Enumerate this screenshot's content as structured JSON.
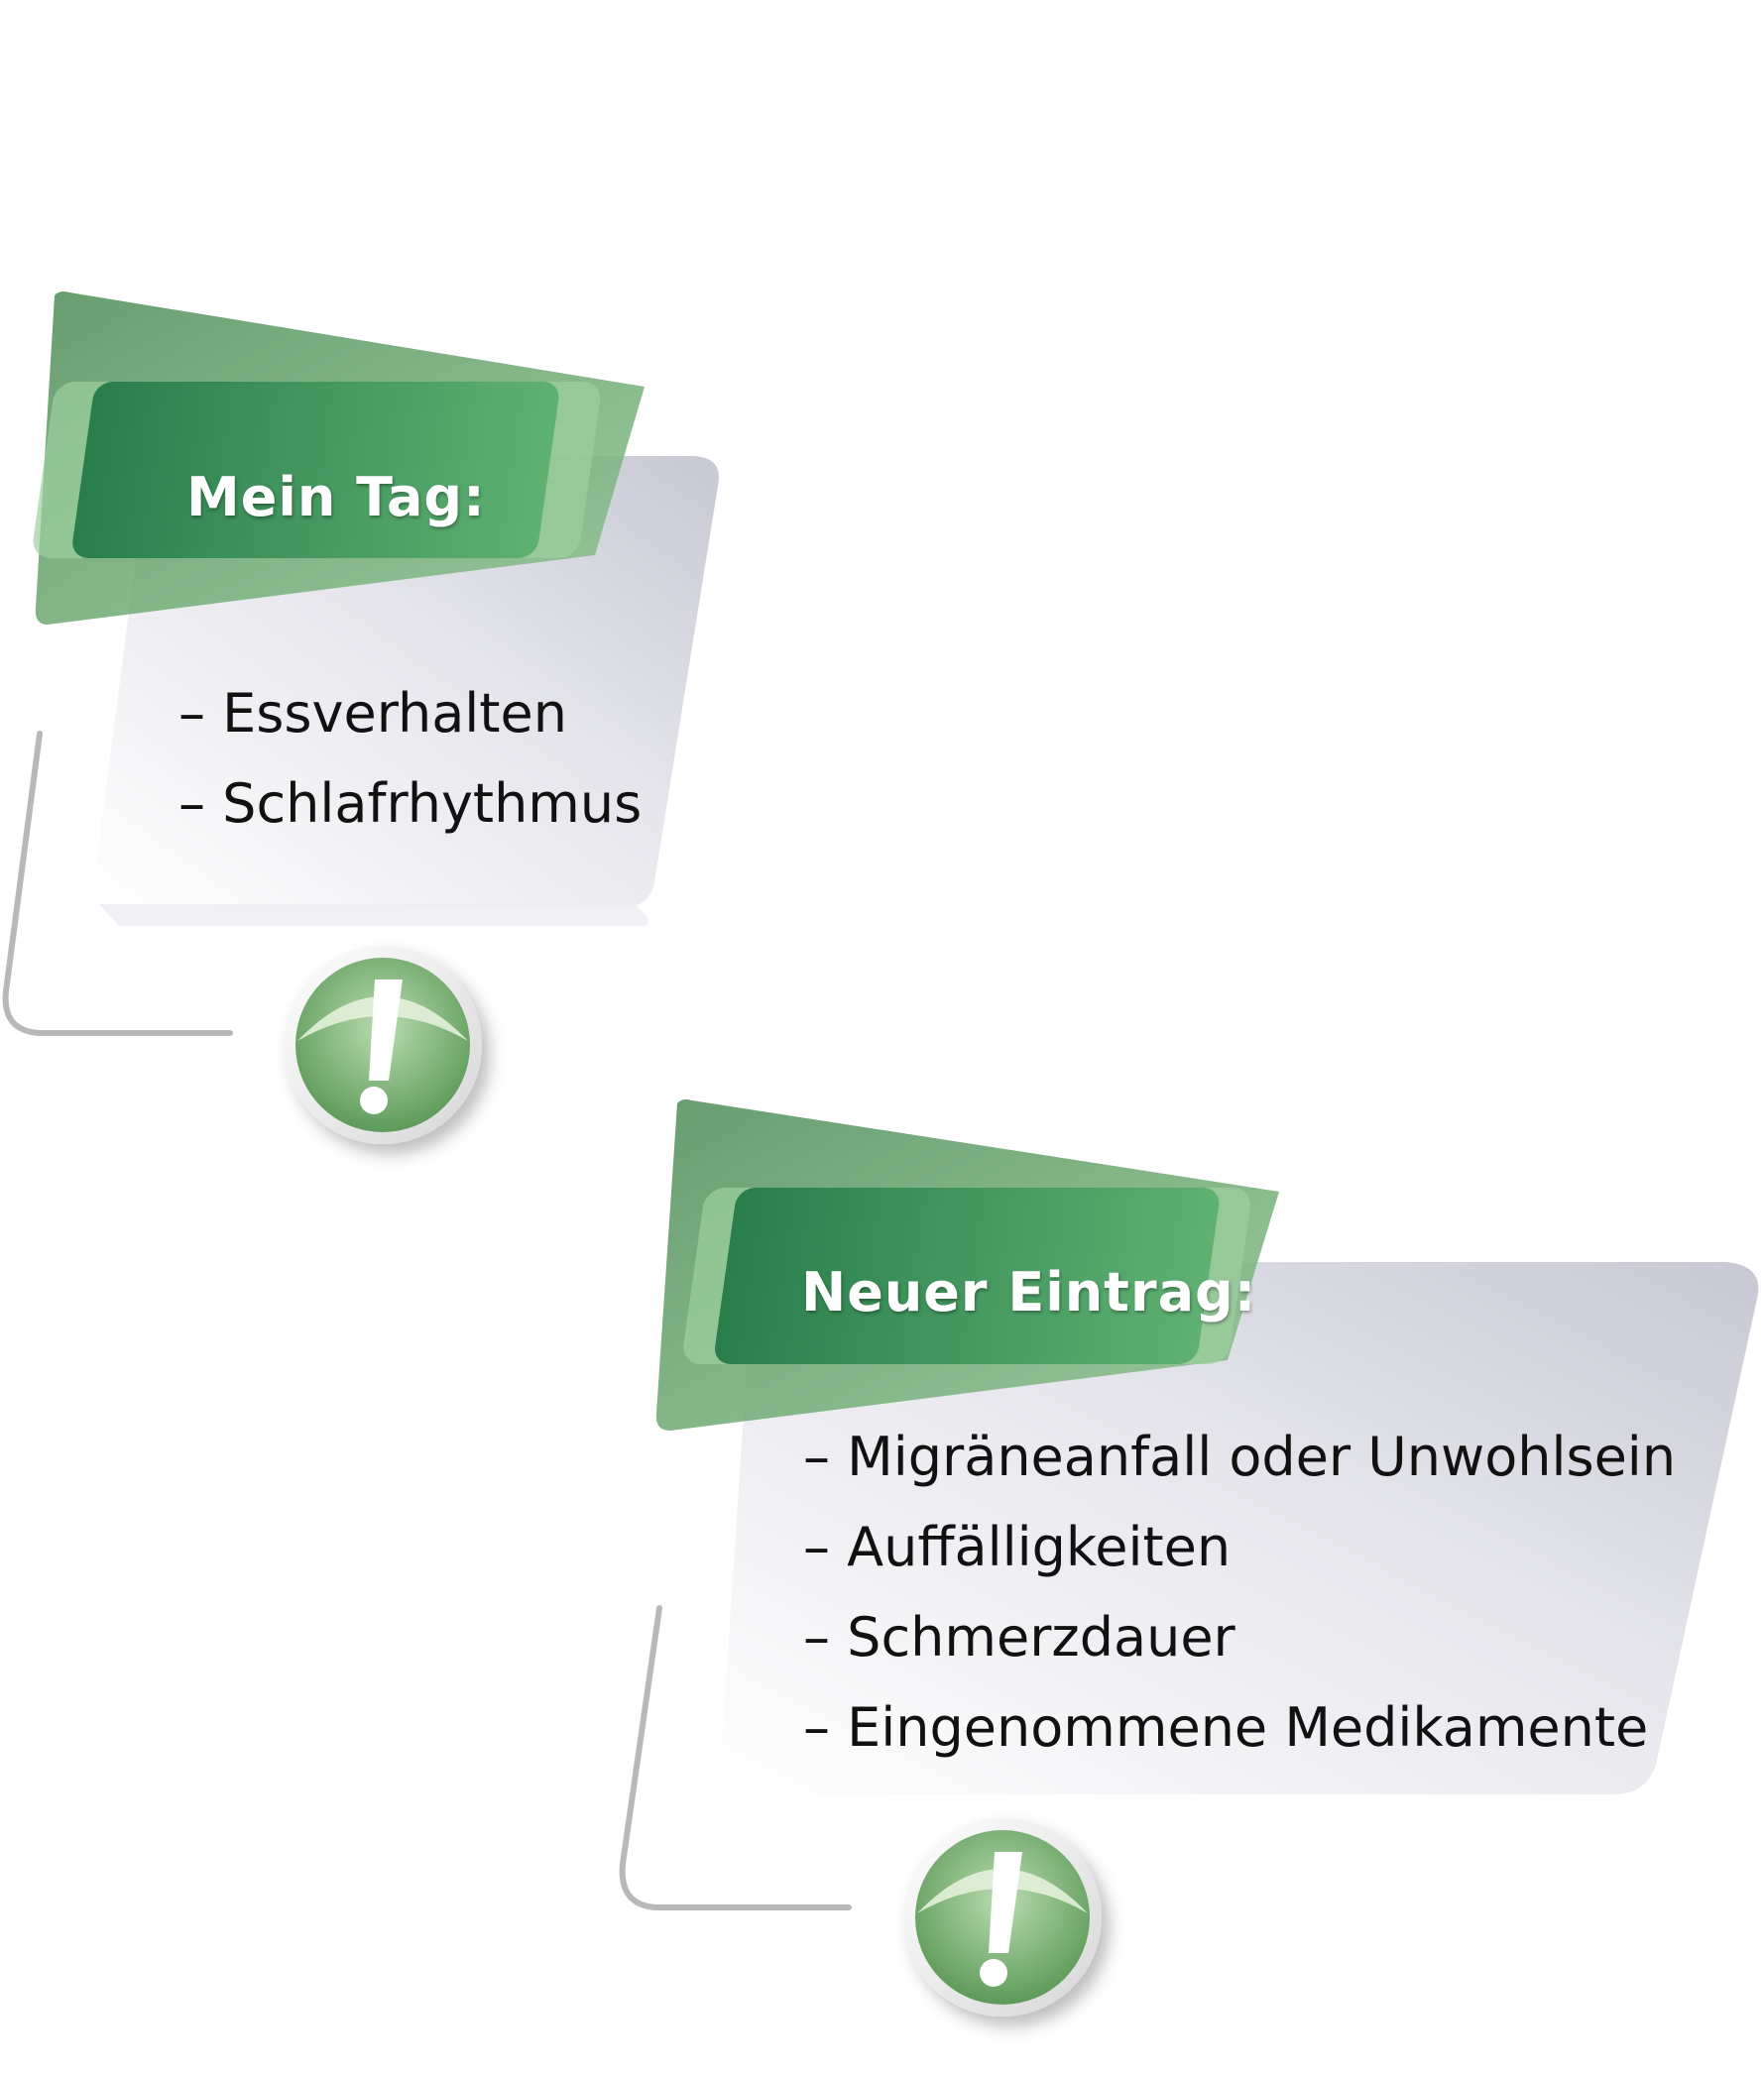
{
  "cards": [
    {
      "title": "Mein Tag:",
      "items": [
        "Essverhalten",
        "Schlafrhythmus"
      ],
      "icon": "exclamation-icon"
    },
    {
      "title": "Neuer Eintrag:",
      "items": [
        "Migräneanfall oder Unwohlsein",
        "Auffälligkeiten",
        "Schmerzdauer",
        "Eingenommene Medikamente"
      ],
      "icon": "exclamation-icon"
    }
  ],
  "colors": {
    "green_dark": "#2a7d4f",
    "green_light": "#5fb274",
    "card_gray": "#cfcfda",
    "connector": "#b8b8b8"
  }
}
